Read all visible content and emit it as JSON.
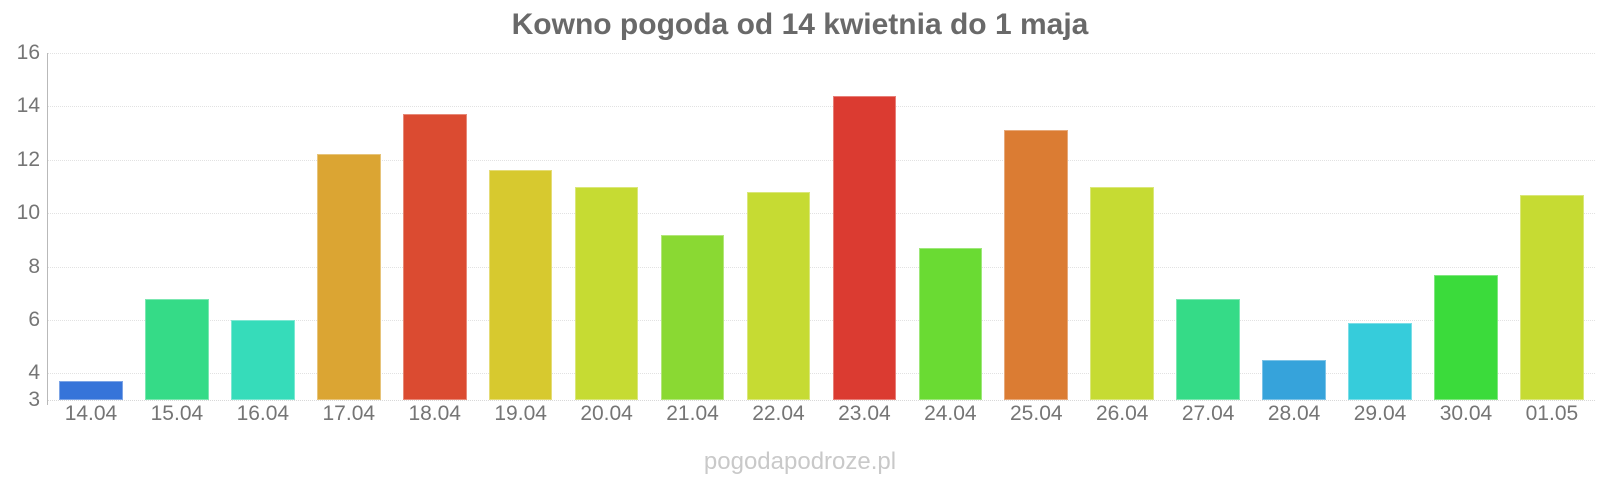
{
  "chart_data": {
    "type": "bar",
    "title": "Kowno pogoda od 14 kwietnia do 1 maja",
    "categories": [
      "14.04",
      "15.04",
      "16.04",
      "17.04",
      "18.04",
      "19.04",
      "20.04",
      "21.04",
      "22.04",
      "23.04",
      "24.04",
      "25.04",
      "26.04",
      "27.04",
      "28.04",
      "29.04",
      "30.04",
      "01.05"
    ],
    "values": [
      3.7,
      6.8,
      6.0,
      12.2,
      13.7,
      11.6,
      11.0,
      9.2,
      10.8,
      14.4,
      8.7,
      13.1,
      11.0,
      6.8,
      4.5,
      5.9,
      7.7,
      10.7
    ],
    "bar_colors": [
      "#3674d9",
      "#35db87",
      "#36dcba",
      "#dba533",
      "#db4b31",
      "#d7c92f",
      "#c6db33",
      "#8ad933",
      "#c6db33",
      "#db3b31",
      "#6adb33",
      "#db7c33",
      "#c6db33",
      "#35db87",
      "#36a3db",
      "#36ccdb",
      "#3bdb3b",
      "#c6db33"
    ],
    "ylim": [
      3,
      16
    ],
    "yticks": [
      16,
      14,
      12,
      10,
      8,
      6,
      4,
      3
    ],
    "grid": true,
    "legend": "none",
    "xlabel": "",
    "ylabel": "",
    "footer": "pogodapodroze.pl"
  }
}
